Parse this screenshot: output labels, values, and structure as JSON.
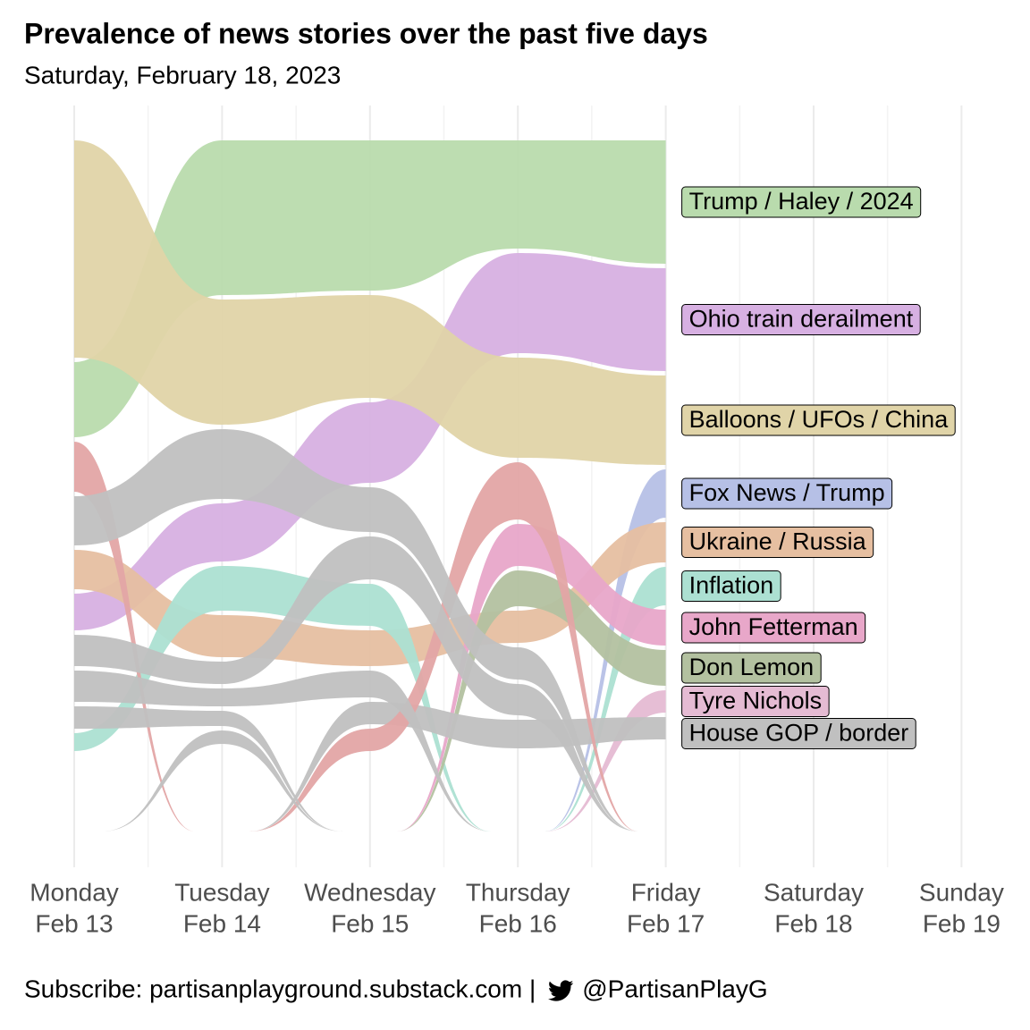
{
  "chart_data": {
    "type": "alluvial",
    "title": "Prevalence of news stories over the past five days",
    "subtitle": "Saturday, February 18, 2023",
    "x": [
      [
        "Monday",
        "Feb 13"
      ],
      [
        "Tuesday",
        "Feb 14"
      ],
      [
        "Wednesday",
        "Feb 15"
      ],
      [
        "Thursday",
        "Feb 16"
      ],
      [
        "Friday",
        "Feb 17"
      ],
      [
        "Saturday",
        "Feb 18"
      ],
      [
        "Sunday",
        "Feb 19"
      ]
    ],
    "grid": true,
    "series": [
      {
        "name": "Trump / Haley / 2024",
        "color": "#b9dbad",
        "values": [
          84,
          173,
          168,
          121,
          138,
          null,
          null
        ]
      },
      {
        "name": "Ohio train derailment",
        "color": "#d7b0e2",
        "values": [
          41,
          65,
          90,
          112,
          115,
          null,
          null
        ]
      },
      {
        "name": "Balloons / UFOs / China",
        "color": "#e0d4a8",
        "values": [
          243,
          140,
          115,
          112,
          100,
          null,
          null
        ]
      },
      {
        "name": "Fox News / Trump",
        "color": "#b6c0e6",
        "values": [
          null,
          null,
          null,
          null,
          54,
          null,
          null
        ]
      },
      {
        "name": "Ukraine / Russia",
        "color": "#e6bfa1",
        "values": [
          44,
          47,
          40,
          36,
          45,
          null,
          null
        ]
      },
      {
        "name": "Inflation",
        "color": "#ace0d2",
        "values": [
          20,
          50,
          47,
          null,
          43,
          null,
          null
        ]
      },
      {
        "name": "John Fetterman",
        "color": "#e8a7c9",
        "values": [
          null,
          null,
          null,
          47,
          40,
          null,
          null
        ]
      },
      {
        "name": "Don Lemon",
        "color": "#b3c1a0",
        "values": [
          null,
          null,
          null,
          40,
          40,
          null,
          null
        ]
      },
      {
        "name": "Tyre Nichols",
        "color": "#e5bbd3",
        "values": [
          null,
          null,
          null,
          null,
          25,
          null,
          null
        ]
      },
      {
        "name": "House GOP / border",
        "color": "#c0c0c0",
        "values": [
          null,
          null,
          25,
          32,
          25,
          null,
          null
        ]
      },
      {
        "name": null,
        "color": "#e3a5a5",
        "values": [
          56,
          null,
          25,
          64,
          null,
          null,
          null
        ]
      },
      {
        "name": null,
        "color": "#c0c0c0",
        "values": [
          55,
          78,
          50,
          36,
          null,
          null,
          null
        ]
      },
      {
        "name": null,
        "color": "#c0c0c0",
        "values": [
          35,
          25,
          48,
          35,
          null,
          null,
          null
        ]
      },
      {
        "name": null,
        "color": "#c0c0c0",
        "values": [
          35,
          20,
          30,
          null,
          null,
          null,
          null
        ]
      },
      {
        "name": null,
        "color": "#c0c0c0",
        "values": [
          25,
          17,
          null,
          null,
          null,
          null,
          null
        ]
      },
      {
        "name": null,
        "color": "#c0c0c0",
        "values": [
          null,
          15,
          null,
          null,
          null,
          null,
          null
        ]
      }
    ],
    "footer": "Subscribe: partisanplayground.substack.com |",
    "handle": "@PartisanPlayG"
  }
}
